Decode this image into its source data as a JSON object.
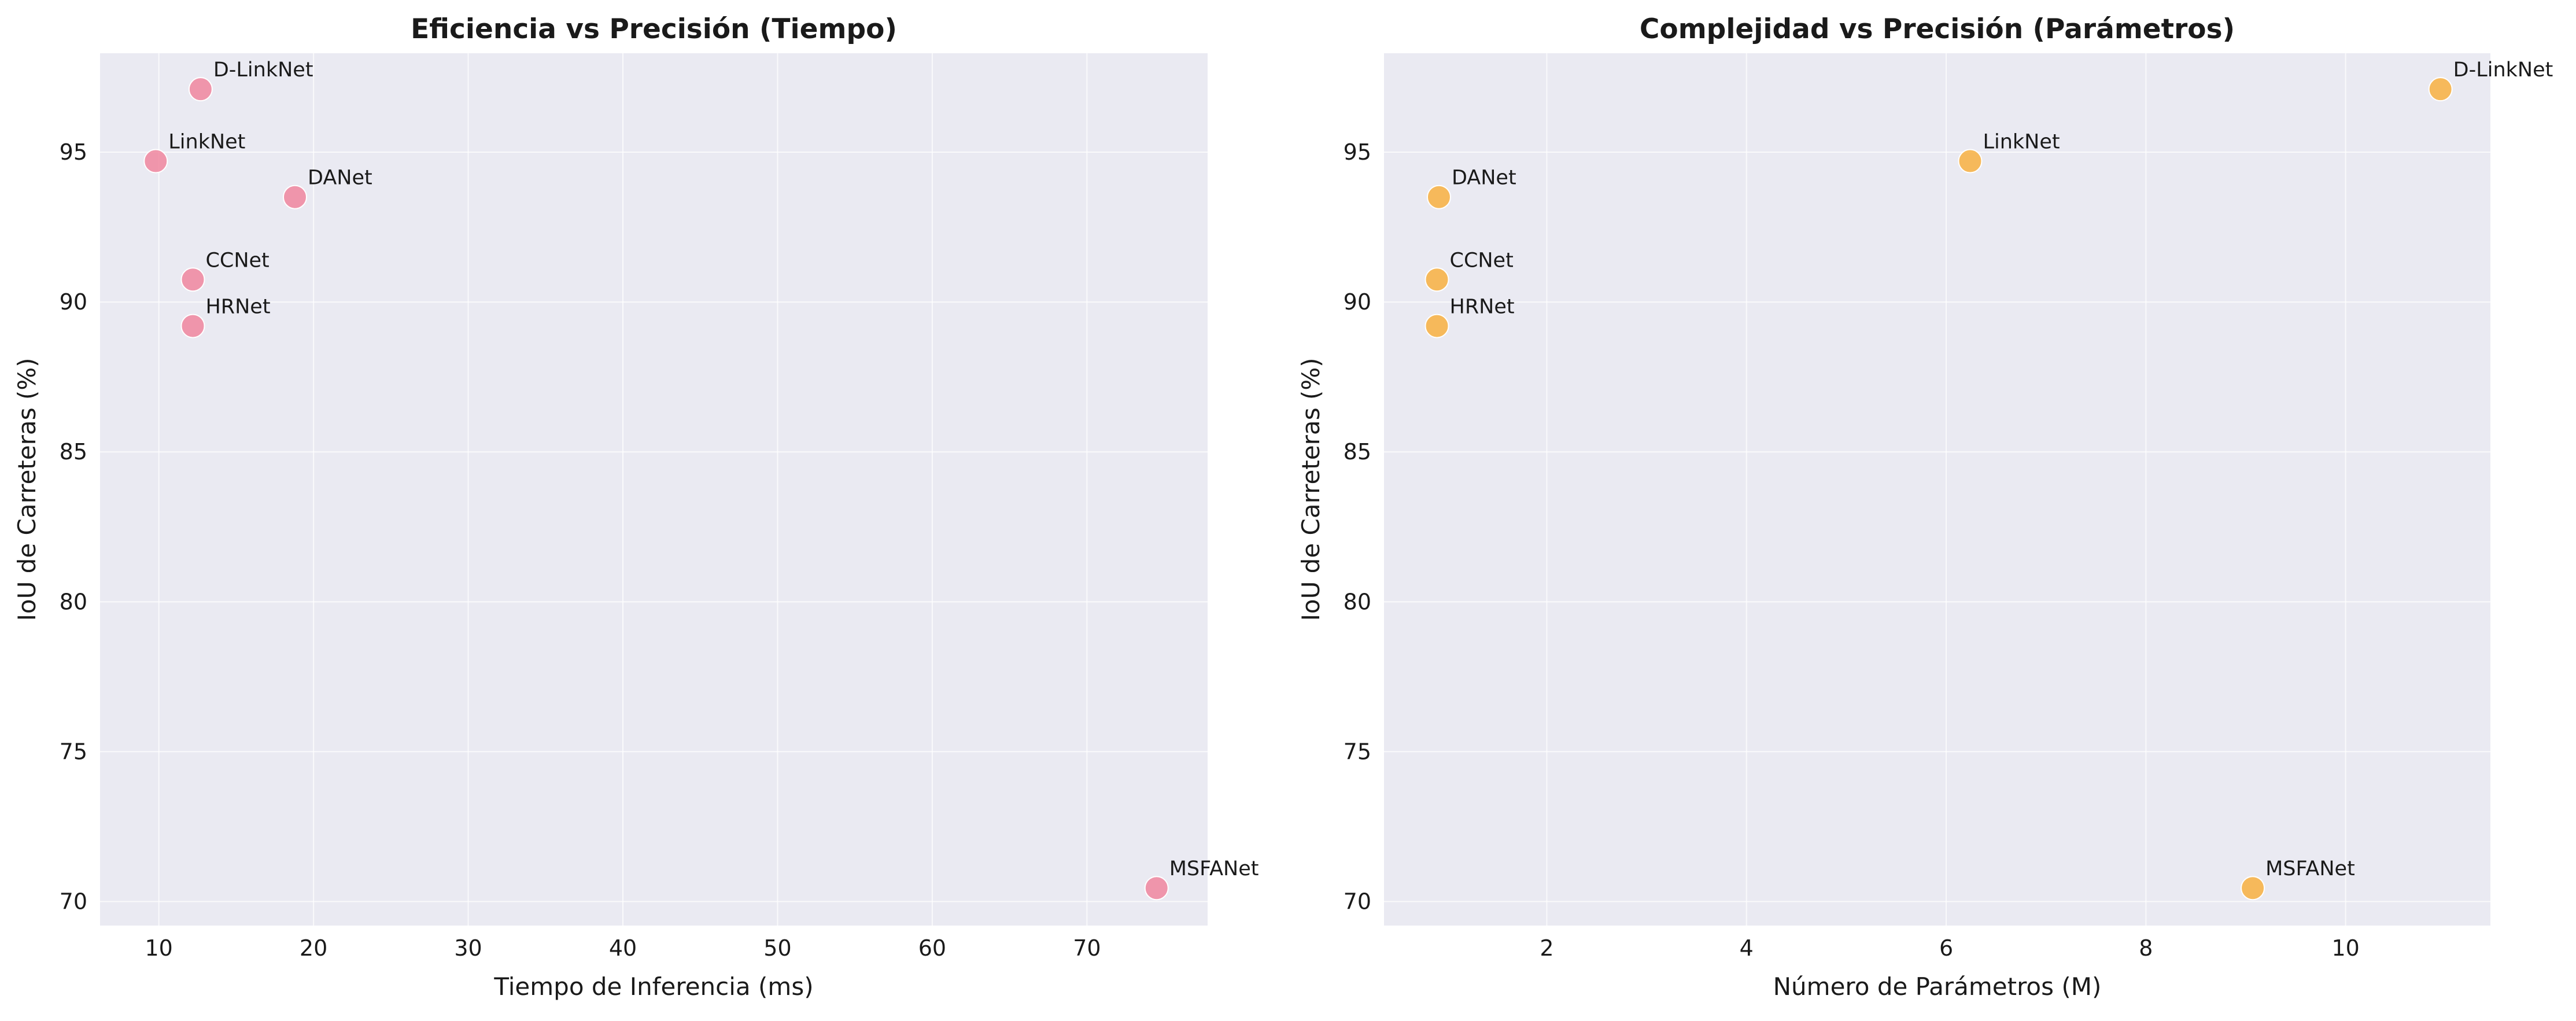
{
  "chart_data": [
    {
      "type": "scatter",
      "title": "Eficiencia vs Precisión (Tiempo)",
      "xlabel": "Tiempo de Inferencia (ms)",
      "ylabel": "IoU de Carreteras (%)",
      "xlim": [
        6.2,
        77.8
      ],
      "ylim": [
        69.2,
        98.3
      ],
      "xticks": [
        10,
        20,
        30,
        40,
        50,
        60,
        70
      ],
      "yticks": [
        70,
        75,
        80,
        85,
        90,
        95
      ],
      "grid": true,
      "color": "#f07f98",
      "points": [
        {
          "label": "D-LinkNet",
          "x": 12.7,
          "y": 97.1
        },
        {
          "label": "LinkNet",
          "x": 9.8,
          "y": 94.7
        },
        {
          "label": "DANet",
          "x": 18.8,
          "y": 93.5
        },
        {
          "label": "CCNet",
          "x": 12.2,
          "y": 90.75
        },
        {
          "label": "HRNet",
          "x": 12.2,
          "y": 89.2
        },
        {
          "label": "MSFANet",
          "x": 74.5,
          "y": 70.45
        }
      ]
    },
    {
      "type": "scatter",
      "title": "Complejidad vs Precisión (Parámetros)",
      "xlabel": "Número de Parámetros (M)",
      "ylabel": "IoU de Carreteras (%)",
      "xlim": [
        0.37,
        11.45
      ],
      "ylim": [
        69.2,
        98.3
      ],
      "xticks": [
        2,
        4,
        6,
        8,
        10
      ],
      "yticks": [
        70,
        75,
        80,
        85,
        90,
        95
      ],
      "grid": true,
      "color": "#f9ac35",
      "points": [
        {
          "label": "D-LinkNet",
          "x": 10.95,
          "y": 97.1
        },
        {
          "label": "LinkNet",
          "x": 6.24,
          "y": 94.7
        },
        {
          "label": "DANet",
          "x": 0.92,
          "y": 93.5
        },
        {
          "label": "CCNet",
          "x": 0.9,
          "y": 90.75
        },
        {
          "label": "HRNet",
          "x": 0.9,
          "y": 89.2
        },
        {
          "label": "MSFANet",
          "x": 9.07,
          "y": 70.45
        }
      ]
    }
  ]
}
